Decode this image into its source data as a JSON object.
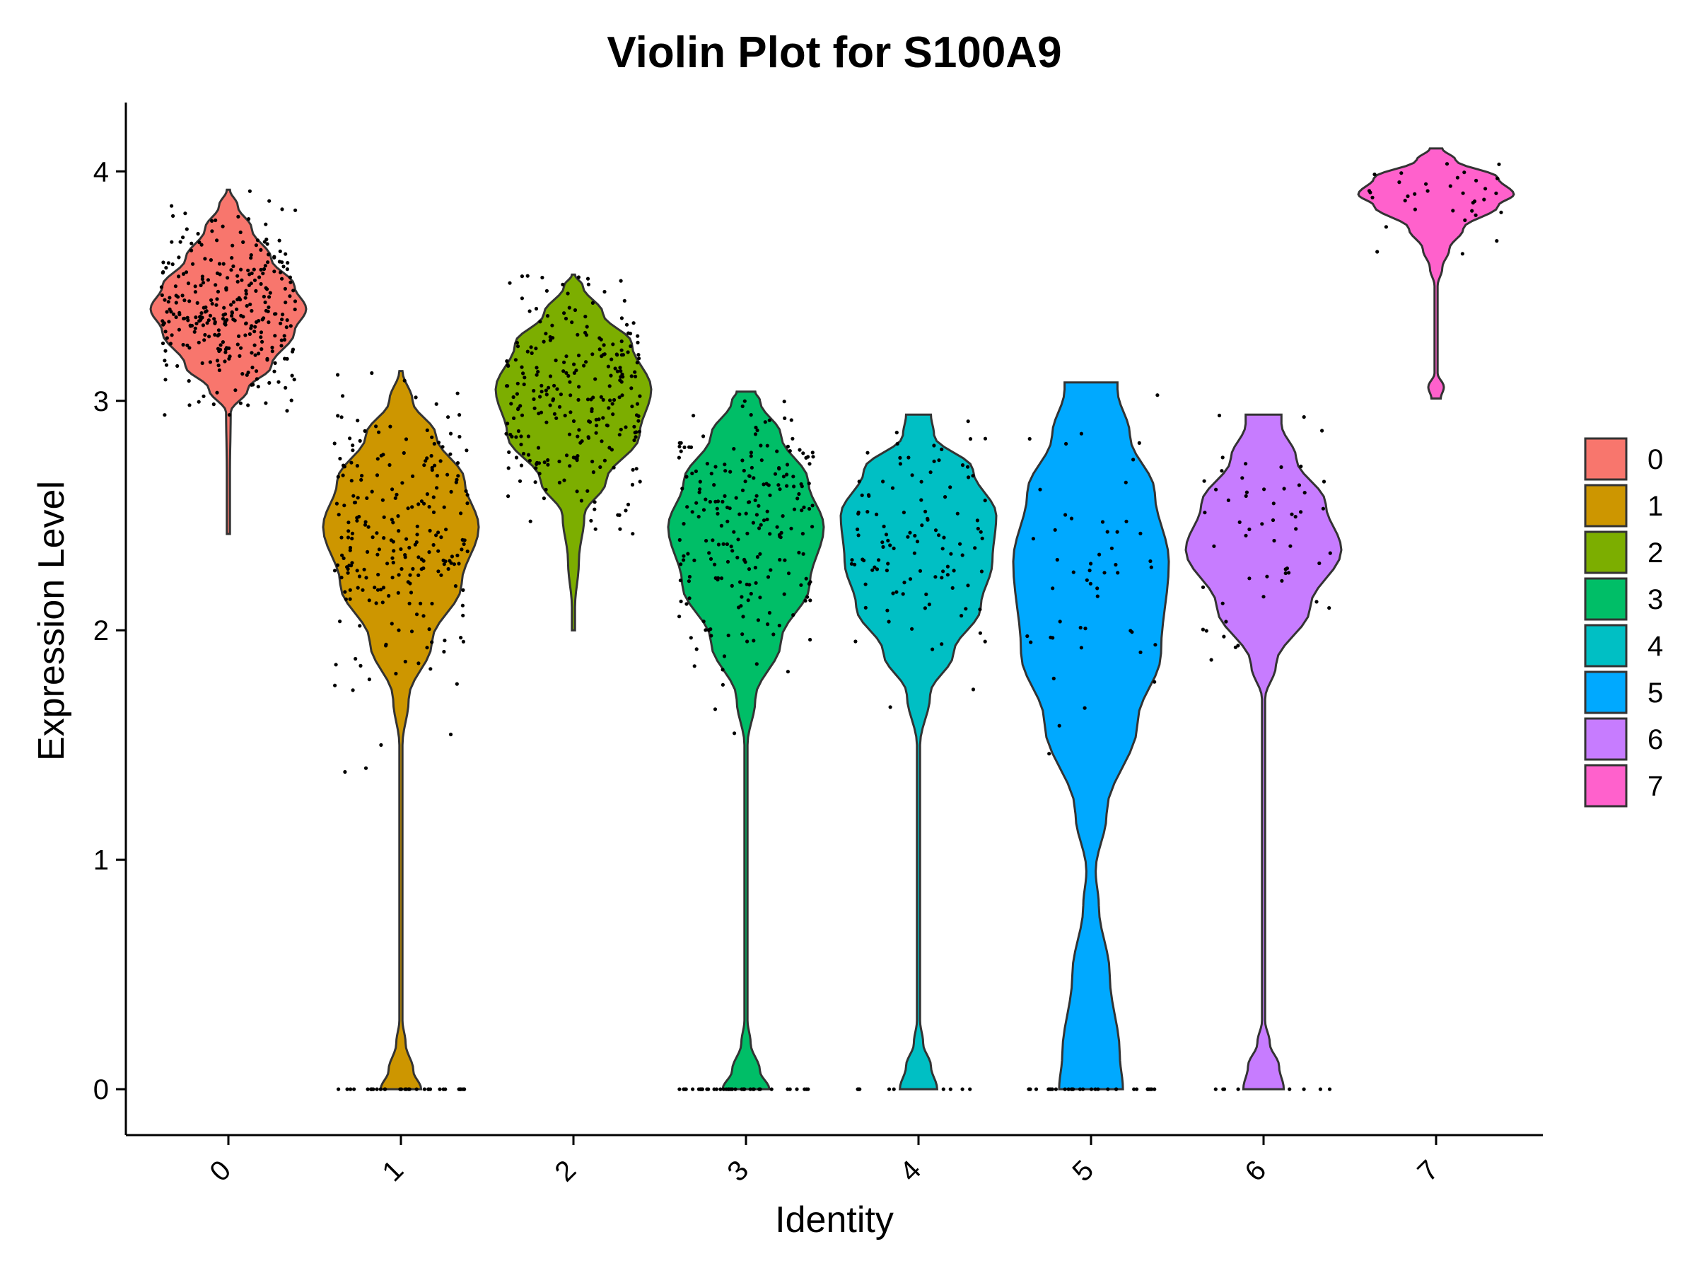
{
  "chart_data": {
    "type": "violin",
    "title": "Violin Plot for S100A9",
    "xlabel": "Identity",
    "ylabel": "Expression Level",
    "ylim": [
      -0.2,
      4.3
    ],
    "yticks": [
      0,
      1,
      2,
      3,
      4
    ],
    "categories": [
      "0",
      "1",
      "2",
      "3",
      "4",
      "5",
      "6",
      "7"
    ],
    "legend": {
      "position": "right",
      "entries": [
        "0",
        "1",
        "2",
        "3",
        "4",
        "5",
        "6",
        "7"
      ]
    },
    "colors": [
      "#F8766D",
      "#CD9600",
      "#7CAE00",
      "#00BE67",
      "#00BFC4",
      "#00A9FF",
      "#C77CFF",
      "#FF61CC"
    ],
    "grid": false,
    "series": [
      {
        "name": "0",
        "min": 2.42,
        "max": 3.92,
        "profile": [
          [
            2.42,
            0.02
          ],
          [
            2.7,
            0.02
          ],
          [
            2.95,
            0.03
          ],
          [
            3.05,
            0.25
          ],
          [
            3.15,
            0.55
          ],
          [
            3.3,
            0.85
          ],
          [
            3.4,
            1.0
          ],
          [
            3.5,
            0.85
          ],
          [
            3.62,
            0.55
          ],
          [
            3.75,
            0.3
          ],
          [
            3.85,
            0.12
          ],
          [
            3.92,
            0.02
          ]
        ],
        "center": 3.4,
        "spread": 0.2,
        "n_points": 320,
        "zero_points": 0
      },
      {
        "name": "1",
        "min": 0.0,
        "max": 3.13,
        "profile": [
          [
            0.0,
            0.26
          ],
          [
            0.08,
            0.16
          ],
          [
            0.2,
            0.06
          ],
          [
            0.3,
            0.02
          ],
          [
            1.5,
            0.02
          ],
          [
            1.7,
            0.1
          ],
          [
            1.95,
            0.4
          ],
          [
            2.2,
            0.78
          ],
          [
            2.45,
            1.0
          ],
          [
            2.65,
            0.82
          ],
          [
            2.85,
            0.45
          ],
          [
            3.0,
            0.15
          ],
          [
            3.13,
            0.02
          ]
        ],
        "center": 2.4,
        "spread": 0.3,
        "n_points": 240,
        "zero_points": 34
      },
      {
        "name": "2",
        "min": 2.0,
        "max": 3.55,
        "profile": [
          [
            2.0,
            0.02
          ],
          [
            2.1,
            0.02
          ],
          [
            2.3,
            0.07
          ],
          [
            2.5,
            0.14
          ],
          [
            2.65,
            0.42
          ],
          [
            2.85,
            0.85
          ],
          [
            3.05,
            1.0
          ],
          [
            3.25,
            0.75
          ],
          [
            3.38,
            0.38
          ],
          [
            3.5,
            0.12
          ],
          [
            3.55,
            0.02
          ]
        ],
        "center": 3.0,
        "spread": 0.25,
        "n_points": 260,
        "zero_points": 0
      },
      {
        "name": "3",
        "min": 0.0,
        "max": 3.04,
        "profile": [
          [
            0.0,
            0.3
          ],
          [
            0.08,
            0.18
          ],
          [
            0.2,
            0.06
          ],
          [
            0.3,
            0.02
          ],
          [
            1.5,
            0.02
          ],
          [
            1.7,
            0.12
          ],
          [
            1.95,
            0.45
          ],
          [
            2.2,
            0.82
          ],
          [
            2.45,
            1.0
          ],
          [
            2.65,
            0.8
          ],
          [
            2.85,
            0.45
          ],
          [
            3.0,
            0.18
          ],
          [
            3.04,
            0.12
          ]
        ],
        "center": 2.4,
        "spread": 0.3,
        "n_points": 220,
        "zero_points": 40
      },
      {
        "name": "4",
        "min": 0.0,
        "max": 2.94,
        "profile": [
          [
            0.0,
            0.24
          ],
          [
            0.1,
            0.16
          ],
          [
            0.2,
            0.06
          ],
          [
            0.3,
            0.02
          ],
          [
            1.5,
            0.02
          ],
          [
            1.72,
            0.15
          ],
          [
            1.9,
            0.45
          ],
          [
            2.1,
            0.8
          ],
          [
            2.3,
            0.95
          ],
          [
            2.5,
            1.0
          ],
          [
            2.7,
            0.7
          ],
          [
            2.85,
            0.2
          ],
          [
            2.94,
            0.16
          ]
        ],
        "center": 2.35,
        "spread": 0.28,
        "n_points": 110,
        "zero_points": 10
      },
      {
        "name": "5",
        "min": 0.0,
        "max": 3.08,
        "profile": [
          [
            0.0,
            0.41
          ],
          [
            0.15,
            0.37
          ],
          [
            0.5,
            0.24
          ],
          [
            0.8,
            0.1
          ],
          [
            0.95,
            0.06
          ],
          [
            1.2,
            0.2
          ],
          [
            1.6,
            0.6
          ],
          [
            1.9,
            0.9
          ],
          [
            2.3,
            1.0
          ],
          [
            2.6,
            0.82
          ],
          [
            2.85,
            0.5
          ],
          [
            3.05,
            0.34
          ],
          [
            3.08,
            0.34
          ]
        ],
        "center": 2.3,
        "spread": 0.32,
        "n_points": 50,
        "zero_points": 30
      },
      {
        "name": "6",
        "min": 0.0,
        "max": 2.94,
        "profile": [
          [
            0.0,
            0.26
          ],
          [
            0.1,
            0.2
          ],
          [
            0.2,
            0.08
          ],
          [
            0.3,
            0.02
          ],
          [
            1.7,
            0.02
          ],
          [
            1.85,
            0.16
          ],
          [
            2.1,
            0.6
          ],
          [
            2.35,
            1.0
          ],
          [
            2.55,
            0.8
          ],
          [
            2.75,
            0.42
          ],
          [
            2.9,
            0.23
          ],
          [
            2.94,
            0.23
          ]
        ],
        "center": 2.4,
        "spread": 0.25,
        "n_points": 55,
        "zero_points": 8
      },
      {
        "name": "7",
        "min": 3.01,
        "max": 4.1,
        "profile": [
          [
            3.01,
            0.06
          ],
          [
            3.06,
            0.1
          ],
          [
            3.12,
            0.02
          ],
          [
            3.5,
            0.02
          ],
          [
            3.58,
            0.08
          ],
          [
            3.66,
            0.17
          ],
          [
            3.75,
            0.35
          ],
          [
            3.85,
            0.8
          ],
          [
            3.9,
            1.0
          ],
          [
            3.97,
            0.8
          ],
          [
            4.05,
            0.25
          ],
          [
            4.1,
            0.08
          ]
        ],
        "center": 3.88,
        "spread": 0.1,
        "n_points": 34,
        "zero_points": 0
      }
    ]
  }
}
